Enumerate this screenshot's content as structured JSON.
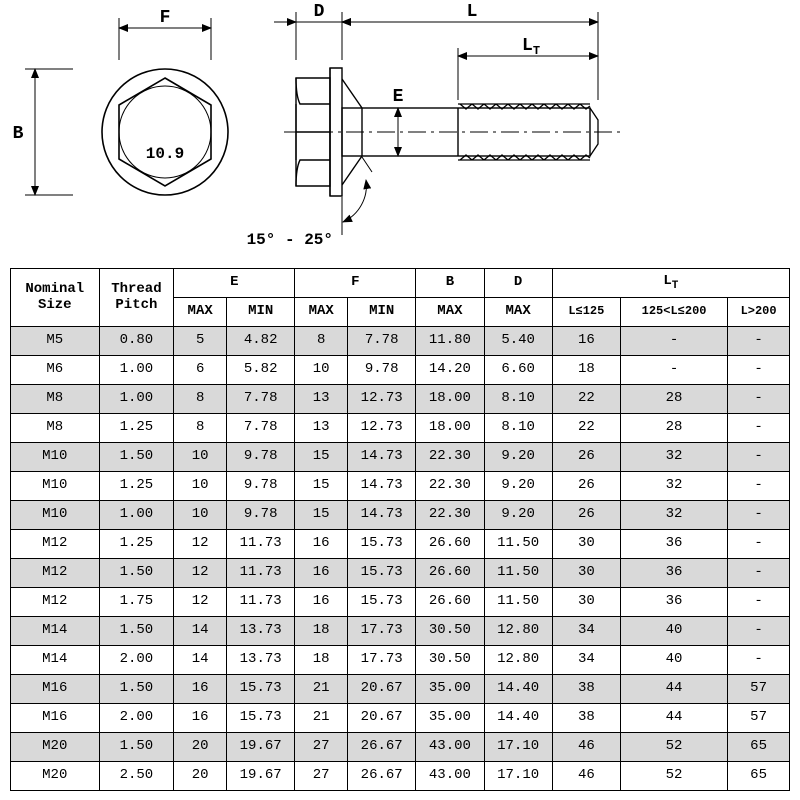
{
  "diagram": {
    "stroke": "#000000",
    "fill_light": "#ffffff",
    "label_font_size": 16,
    "labels": {
      "F": "F",
      "B": "B",
      "grade": "10.9",
      "D": "D",
      "L": "L",
      "LT": "L",
      "LT_sub": "T",
      "E": "E",
      "angle": "15° - 25°"
    }
  },
  "table": {
    "header_bg": "#ffffff",
    "shade_bg": "#d9d9d9",
    "border_color": "#000000",
    "columns_top": [
      "Nominal",
      "Thread",
      "E",
      "F",
      "B",
      "D",
      "L"
    ],
    "columns_top2": [
      "Size",
      "Pitch",
      ""
    ],
    "lt_sub": "T",
    "columns_sub": [
      "MAX",
      "MIN",
      "MAX",
      "MIN",
      "MAX",
      "MAX",
      "L≤125",
      "125<L≤200",
      "L>200"
    ],
    "col_widths_pct": [
      10.9,
      9.2,
      6.5,
      8.4,
      6.5,
      8.4,
      8.4,
      8.4,
      8.4,
      13.2,
      7.6
    ],
    "rows": [
      {
        "s": true,
        "c": [
          "M5",
          "0.80",
          "5",
          "4.82",
          "8",
          "7.78",
          "11.80",
          "5.40",
          "16",
          "-",
          "-"
        ]
      },
      {
        "s": false,
        "c": [
          "M6",
          "1.00",
          "6",
          "5.82",
          "10",
          "9.78",
          "14.20",
          "6.60",
          "18",
          "-",
          "-"
        ]
      },
      {
        "s": true,
        "c": [
          "M8",
          "1.00",
          "8",
          "7.78",
          "13",
          "12.73",
          "18.00",
          "8.10",
          "22",
          "28",
          "-"
        ]
      },
      {
        "s": false,
        "c": [
          "M8",
          "1.25",
          "8",
          "7.78",
          "13",
          "12.73",
          "18.00",
          "8.10",
          "22",
          "28",
          "-"
        ]
      },
      {
        "s": true,
        "c": [
          "M10",
          "1.50",
          "10",
          "9.78",
          "15",
          "14.73",
          "22.30",
          "9.20",
          "26",
          "32",
          "-"
        ]
      },
      {
        "s": false,
        "c": [
          "M10",
          "1.25",
          "10",
          "9.78",
          "15",
          "14.73",
          "22.30",
          "9.20",
          "26",
          "32",
          "-"
        ]
      },
      {
        "s": true,
        "c": [
          "M10",
          "1.00",
          "10",
          "9.78",
          "15",
          "14.73",
          "22.30",
          "9.20",
          "26",
          "32",
          "-"
        ]
      },
      {
        "s": false,
        "c": [
          "M12",
          "1.25",
          "12",
          "11.73",
          "16",
          "15.73",
          "26.60",
          "11.50",
          "30",
          "36",
          "-"
        ]
      },
      {
        "s": true,
        "c": [
          "M12",
          "1.50",
          "12",
          "11.73",
          "16",
          "15.73",
          "26.60",
          "11.50",
          "30",
          "36",
          "-"
        ]
      },
      {
        "s": false,
        "c": [
          "M12",
          "1.75",
          "12",
          "11.73",
          "16",
          "15.73",
          "26.60",
          "11.50",
          "30",
          "36",
          "-"
        ]
      },
      {
        "s": true,
        "c": [
          "M14",
          "1.50",
          "14",
          "13.73",
          "18",
          "17.73",
          "30.50",
          "12.80",
          "34",
          "40",
          "-"
        ]
      },
      {
        "s": false,
        "c": [
          "M14",
          "2.00",
          "14",
          "13.73",
          "18",
          "17.73",
          "30.50",
          "12.80",
          "34",
          "40",
          "-"
        ]
      },
      {
        "s": true,
        "c": [
          "M16",
          "1.50",
          "16",
          "15.73",
          "21",
          "20.67",
          "35.00",
          "14.40",
          "38",
          "44",
          "57"
        ]
      },
      {
        "s": false,
        "c": [
          "M16",
          "2.00",
          "16",
          "15.73",
          "21",
          "20.67",
          "35.00",
          "14.40",
          "38",
          "44",
          "57"
        ]
      },
      {
        "s": true,
        "c": [
          "M20",
          "1.50",
          "20",
          "19.67",
          "27",
          "26.67",
          "43.00",
          "17.10",
          "46",
          "52",
          "65"
        ]
      },
      {
        "s": false,
        "c": [
          "M20",
          "2.50",
          "20",
          "19.67",
          "27",
          "26.67",
          "43.00",
          "17.10",
          "46",
          "52",
          "65"
        ]
      }
    ]
  }
}
